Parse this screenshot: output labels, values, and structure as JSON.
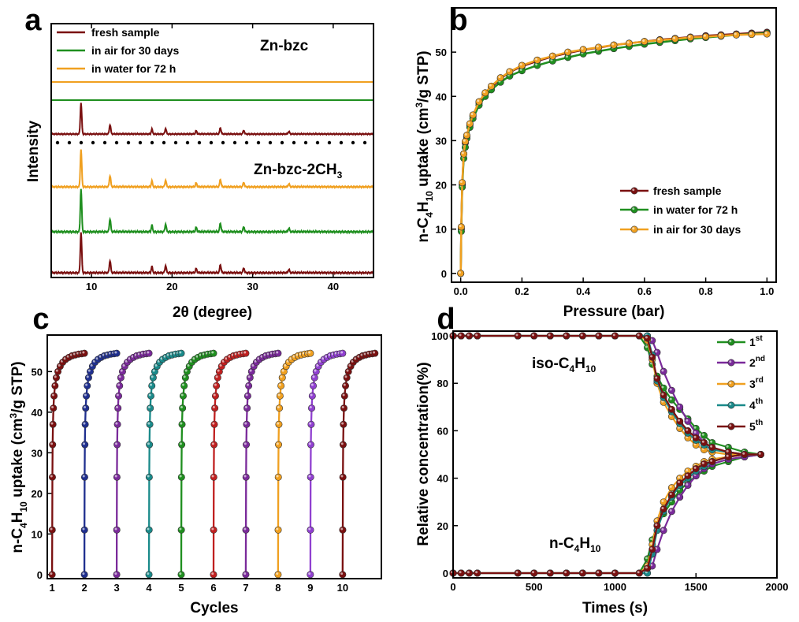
{
  "colors": {
    "fresh": "#7a1010",
    "water": "#1f8f1f",
    "air": "#f0a020",
    "orange": "#f0a020",
    "green": "#1f8f1f",
    "maroon": "#7a1010",
    "navy": "#1f2f8f",
    "purple": "#7a2a9a",
    "teal": "#1a8a8a",
    "red": "#c02020",
    "violet": "#9040d0"
  },
  "chart_data": [
    {
      "panel": "a",
      "type": "line",
      "ylabel": "Intensity",
      "xlabel": "2θ (degree)",
      "xlim": [
        5,
        45
      ],
      "xticks": [
        10,
        20,
        30,
        40
      ],
      "ytick_labels": false,
      "legend": {
        "position": "top-left",
        "items": [
          "fresh sample",
          "in air for 30 days",
          "in water for 72 h"
        ],
        "colors": [
          "fresh",
          "air",
          "orange"
        ]
      },
      "annotations": [
        {
          "text": "Zn-bzc",
          "sub": "",
          "tail": ""
        },
        {
          "text": "Zn-bzc-2CH",
          "sub": "3",
          "tail": ""
        }
      ],
      "separator": "dotted",
      "peaks_2theta": [
        8.7,
        12.3,
        17.5,
        19.2,
        23.0,
        26.0,
        28.9,
        34.5
      ],
      "peaks_rel_intensity": [
        1.0,
        0.3,
        0.15,
        0.18,
        0.1,
        0.2,
        0.12,
        0.08
      ],
      "series": [
        {
          "name": "in water for 72 h",
          "group": "Zn-bzc",
          "color": "orange",
          "flat": true
        },
        {
          "name": "in air for 30 days",
          "group": "Zn-bzc",
          "color": "green",
          "flat": true
        },
        {
          "name": "fresh sample",
          "group": "Zn-bzc",
          "color": "fresh",
          "flat": false,
          "scale": 0.45
        },
        {
          "name": "in water for 72 h",
          "group": "Zn-bzc-2CH3",
          "color": "orange",
          "flat": false,
          "scale": 1.0
        },
        {
          "name": "in air for 30 days",
          "group": "Zn-bzc-2CH3",
          "color": "green",
          "flat": false,
          "scale": 1.0
        },
        {
          "name": "fresh sample",
          "group": "Zn-bzc-2CH3",
          "color": "fresh",
          "flat": false,
          "scale": 1.0
        }
      ]
    },
    {
      "panel": "b",
      "type": "line",
      "xlabel": "Pressure (bar)",
      "ylabel": {
        "pre": "n-C",
        "s1": "4",
        "mid": "H",
        "s2": "10",
        "post": " uptake (cm",
        "sup": "3",
        "tail": "/g STP)"
      },
      "xlim": [
        -0.03,
        1.03
      ],
      "ylim": [
        -2,
        60
      ],
      "xticks": [
        0.0,
        0.2,
        0.4,
        0.6,
        0.8,
        1.0
      ],
      "xtick_labels": [
        "0.0",
        "0.2",
        "0.4",
        "0.6",
        "0.8",
        "1.0"
      ],
      "yticks": [
        0,
        10,
        20,
        30,
        40,
        50
      ],
      "legend": {
        "position": "center-right"
      },
      "x": [
        0.0,
        0.002,
        0.005,
        0.01,
        0.015,
        0.02,
        0.03,
        0.04,
        0.06,
        0.08,
        0.1,
        0.13,
        0.16,
        0.2,
        0.25,
        0.3,
        0.35,
        0.4,
        0.45,
        0.5,
        0.55,
        0.6,
        0.65,
        0.7,
        0.75,
        0.8,
        0.85,
        0.9,
        0.95,
        1.0
      ],
      "series": [
        {
          "name": "fresh sample",
          "color": "fresh",
          "y": [
            0,
            10,
            20,
            27,
            29.5,
            31,
            33.5,
            35.5,
            38.5,
            40.5,
            42,
            44,
            45.5,
            46.8,
            48,
            49,
            49.8,
            50.5,
            51,
            51.6,
            52,
            52.4,
            52.8,
            53.1,
            53.4,
            53.7,
            53.9,
            54.1,
            54.3,
            54.5
          ]
        },
        {
          "name": "in water for 72 h",
          "color": "water",
          "y": [
            0,
            9.5,
            19.5,
            26,
            28.5,
            30.5,
            33,
            35,
            38,
            40,
            41.5,
            43.2,
            44.6,
            45.8,
            47,
            48,
            48.8,
            49.6,
            50.2,
            50.8,
            51.3,
            51.8,
            52.2,
            52.6,
            53,
            53.3,
            53.6,
            53.9,
            54.1,
            54.3
          ]
        },
        {
          "name": "in air for 30 days",
          "color": "air",
          "y": [
            0,
            10.5,
            20.5,
            27,
            29.8,
            31.2,
            33.8,
            35.8,
            38.8,
            40.8,
            42.3,
            44.2,
            45.6,
            47,
            48.2,
            49.1,
            50,
            50.6,
            51.1,
            51.6,
            52,
            52.4,
            52.7,
            53,
            53.3,
            53.5,
            53.7,
            53.9,
            54.0,
            54.1
          ]
        }
      ]
    },
    {
      "panel": "c",
      "type": "line",
      "xlabel": "Cycles",
      "ylabel": {
        "pre": "n-C",
        "s1": "4",
        "mid": "H",
        "s2": "10",
        "post": " uptake (cm",
        "sup": "3",
        "tail": "/g STP)"
      },
      "xlim": [
        0.85,
        11.2
      ],
      "ylim": [
        -1,
        59
      ],
      "xticks": [
        1,
        2,
        3,
        4,
        5,
        6,
        7,
        8,
        9,
        10
      ],
      "xtick_labels": [
        "1",
        "2",
        "3",
        "4",
        "5",
        "6",
        "7",
        "8",
        "9",
        "10"
      ],
      "yticks": [
        0,
        10,
        20,
        30,
        40,
        50
      ],
      "cycle_colors": [
        "maroon",
        "navy",
        "purple",
        "teal",
        "green",
        "red",
        "purple",
        "orange",
        "violet",
        "maroon"
      ],
      "cycle_profile": {
        "dx": [
          0.0,
          0.003,
          0.008,
          0.015,
          0.025,
          0.04,
          0.06,
          0.09,
          0.13,
          0.18,
          0.25,
          0.33,
          0.42,
          0.52,
          0.62,
          0.72,
          0.82,
          0.92,
          1.0
        ],
        "y": [
          0,
          11,
          24,
          32,
          37,
          41,
          44,
          46.5,
          48.5,
          50,
          51.3,
          52.3,
          53,
          53.5,
          53.9,
          54.1,
          54.3,
          54.4,
          54.5
        ]
      }
    },
    {
      "panel": "d",
      "type": "line",
      "xlabel": "Times (s)",
      "ylabel": "Relative concentration(%)",
      "xlim": [
        0,
        2000
      ],
      "ylim": [
        -2,
        102
      ],
      "xticks": [
        0,
        500,
        1000,
        1500,
        2000
      ],
      "xtick_labels": [
        "0",
        "500",
        "1000",
        "1500",
        "2000"
      ],
      "yticks": [
        0,
        20,
        40,
        60,
        80,
        100
      ],
      "annotations": [
        {
          "text": "iso-C",
          "s1": "4",
          "mid": "H",
          "s2": "10"
        },
        {
          "text": "n-C",
          "s1": "4",
          "mid": "H",
          "s2": "10"
        }
      ],
      "legend": {
        "position": "top-right",
        "items": [
          {
            "base": "1",
            "sup": "st"
          },
          {
            "base": "2",
            "sup": "nd"
          },
          {
            "base": "3",
            "sup": "rd"
          },
          {
            "base": "4",
            "sup": "th"
          },
          {
            "base": "5",
            "sup": "th"
          }
        ]
      },
      "series": [
        {
          "name": "1st",
          "color": "green",
          "iso": {
            "x": [
              0,
              50,
              100,
              150,
              400,
              500,
              600,
              700,
              800,
              900,
              1000,
              1150,
              1200,
              1230,
              1260,
              1300,
              1350,
              1400,
              1450,
              1500,
              1550,
              1600,
              1700,
              1800,
              1900
            ],
            "y": [
              100,
              100,
              100,
              100,
              100,
              100,
              100,
              100,
              100,
              100,
              100,
              100,
              95,
              88,
              83,
              78,
              73,
              69,
              65,
              61,
              58,
              55,
              53,
              51,
              50
            ]
          },
          "n": {
            "x": [
              0,
              50,
              100,
              150,
              400,
              500,
              600,
              700,
              800,
              900,
              1000,
              1150,
              1200,
              1230,
              1260,
              1300,
              1350,
              1400,
              1450,
              1500,
              1550,
              1600,
              1700,
              1800,
              1900
            ],
            "y": [
              0,
              0,
              0,
              0,
              0,
              0,
              0,
              0,
              0,
              0,
              0,
              0,
              6,
              14,
              20,
              25,
              30,
              35,
              38,
              41,
              43,
              45,
              47,
              49,
              50
            ]
          }
        },
        {
          "name": "2nd",
          "color": "purple",
          "iso": {
            "x": [
              0,
              50,
              100,
              150,
              400,
              500,
              600,
              700,
              800,
              900,
              1000,
              1150,
              1200,
              1230,
              1260,
              1300,
              1350,
              1400,
              1450,
              1500,
              1550,
              1600,
              1700,
              1800,
              1900
            ],
            "y": [
              100,
              100,
              100,
              100,
              100,
              100,
              100,
              100,
              100,
              100,
              100,
              100,
              100,
              98,
              93,
              85,
              77,
              70,
              64,
              59,
              55,
              53,
              51,
              50,
              50
            ]
          },
          "n": {
            "x": [
              0,
              50,
              100,
              150,
              400,
              500,
              600,
              700,
              800,
              900,
              1000,
              1150,
              1200,
              1230,
              1260,
              1300,
              1350,
              1400,
              1450,
              1500,
              1550,
              1600,
              1700,
              1800,
              1900
            ],
            "y": [
              0,
              0,
              0,
              0,
              0,
              0,
              0,
              0,
              0,
              0,
              0,
              0,
              0,
              3,
              10,
              18,
              26,
              32,
              37,
              41,
              44,
              46,
              48,
              49,
              50
            ]
          }
        },
        {
          "name": "3rd",
          "color": "orange",
          "iso": {
            "x": [
              0,
              50,
              100,
              150,
              400,
              500,
              600,
              700,
              800,
              900,
              1000,
              1150,
              1200,
              1230,
              1260,
              1300,
              1350,
              1400,
              1450,
              1500,
              1550,
              1600,
              1700,
              1800,
              1900
            ],
            "y": [
              100,
              100,
              100,
              100,
              100,
              100,
              100,
              100,
              100,
              100,
              100,
              100,
              98,
              90,
              80,
              72,
              66,
              61,
              57,
              54,
              52,
              51,
              50,
              50,
              50
            ]
          },
          "n": {
            "x": [
              0,
              50,
              100,
              150,
              400,
              500,
              600,
              700,
              800,
              900,
              1000,
              1150,
              1200,
              1230,
              1260,
              1300,
              1350,
              1400,
              1450,
              1500,
              1550,
              1600,
              1700,
              1800,
              1900
            ],
            "y": [
              0,
              0,
              0,
              0,
              0,
              0,
              0,
              0,
              0,
              0,
              0,
              0,
              3,
              12,
              22,
              30,
              36,
              40,
              43,
              45,
              47,
              48,
              49,
              50,
              50
            ]
          }
        },
        {
          "name": "4th",
          "color": "teal",
          "iso": {
            "x": [
              0,
              50,
              100,
              150,
              400,
              500,
              600,
              700,
              800,
              900,
              1000,
              1150,
              1200,
              1230,
              1260,
              1300,
              1350,
              1400,
              1450,
              1500,
              1550,
              1600,
              1700,
              1800,
              1900
            ],
            "y": [
              100,
              100,
              100,
              100,
              100,
              100,
              100,
              100,
              100,
              100,
              100,
              100,
              100,
              92,
              81,
              74,
              68,
              63,
              59,
              56,
              54,
              52,
              51,
              50,
              50
            ]
          },
          "n": {
            "x": [
              0,
              50,
              100,
              150,
              400,
              500,
              600,
              700,
              800,
              900,
              1000,
              1150,
              1200,
              1230,
              1260,
              1300,
              1350,
              1400,
              1450,
              1500,
              1550,
              1600,
              1700,
              1800,
              1900
            ],
            "y": [
              0,
              0,
              0,
              0,
              0,
              0,
              0,
              0,
              0,
              0,
              0,
              0,
              0,
              8,
              18,
              26,
              32,
              37,
              40,
              43,
              45,
              47,
              49,
              50,
              50
            ]
          }
        },
        {
          "name": "5th",
          "color": "maroon",
          "iso": {
            "x": [
              0,
              50,
              100,
              150,
              400,
              500,
              600,
              700,
              800,
              900,
              1000,
              1150,
              1200,
              1230,
              1260,
              1300,
              1350,
              1400,
              1450,
              1500,
              1550,
              1600,
              1700,
              1800,
              1900
            ],
            "y": [
              100,
              100,
              100,
              100,
              100,
              100,
              100,
              100,
              100,
              100,
              100,
              100,
              99,
              91,
              82,
              75,
              69,
              64,
              60,
              57,
              55,
              53,
              51,
              50,
              50
            ]
          },
          "n": {
            "x": [
              0,
              50,
              100,
              150,
              400,
              500,
              600,
              700,
              800,
              900,
              1000,
              1150,
              1200,
              1230,
              1260,
              1300,
              1350,
              1400,
              1450,
              1500,
              1550,
              1600,
              1700,
              1800,
              1900
            ],
            "y": [
              0,
              0,
              0,
              0,
              0,
              0,
              0,
              0,
              0,
              0,
              0,
              0,
              2,
              10,
              20,
              27,
              33,
              38,
              41,
              44,
              46,
              47,
              49,
              50,
              50
            ]
          }
        }
      ]
    }
  ]
}
